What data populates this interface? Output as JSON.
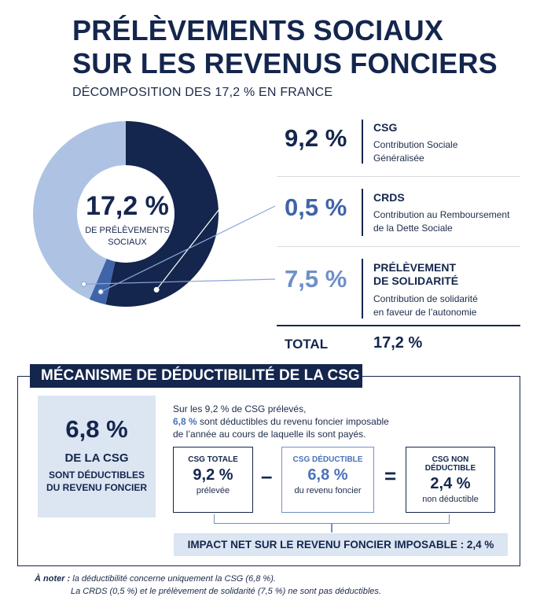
{
  "header": {
    "title_line1": "PRÉLÈVEMENTS SOCIAUX",
    "title_line2": "SUR LES REVENUS FONCIERS",
    "subtitle": "DÉCOMPOSITION DES 17,2 % EN FRANCE"
  },
  "chart_data": {
    "type": "pie",
    "title": "PRÉLÈVEMENTS SOCIAUX SUR LES REVENUS FONCIERS",
    "center_value": "17,2 %",
    "center_label_line1": "DE PRÉLÈVEMENTS",
    "center_label_line2": "SOCIAUX",
    "slices": [
      {
        "key": "csg",
        "value": 9.2,
        "label": "9,2 %",
        "name": "CSG",
        "desc_line1": "Contribution Sociale",
        "desc_line2": "Généralisée",
        "color": "#14264d"
      },
      {
        "key": "crds",
        "value": 0.5,
        "label": "0,5 %",
        "name": "CRDS",
        "desc_line1": "Contribution au Remboursement",
        "desc_line2": "de la Dette Sociale",
        "color": "#3f64a8"
      },
      {
        "key": "solidarite",
        "value": 7.5,
        "label": "7,5 %",
        "name_line1": "PRÉLÈVEMENT",
        "name_line2": "DE SOLIDARITÉ",
        "desc_line1": "Contribution de solidarité",
        "desc_line2": "en faveur de l’autonomie",
        "color": "#aec3e3"
      }
    ],
    "total_label": "TOTAL",
    "total_value": "17,2 %"
  },
  "mechanism": {
    "header": "MÉCANISME DE DÉDUCTIBILITÉ DE LA CSG",
    "big_value": "6,8 %",
    "big_line1": "DE LA CSG",
    "big_line2": "SONT DÉDUCTIBLES",
    "big_line3": "DU REVENU FONCIER",
    "explain_line1": "Sur les 9,2 % de CSG prélevés,",
    "explain_hl": "6,8 %",
    "explain_line2_rest": " sont déductibles du revenu foncier imposable",
    "explain_line3": "de l’année au cours de laquelle ils sont payés.",
    "box1": {
      "label": "CSG TOTALE",
      "value": "9,2 %",
      "sub": "prélevée"
    },
    "minus": "–",
    "box2": {
      "label": "CSG DÉDUCTIBLE",
      "value": "6,8 %",
      "sub": "du revenu foncier"
    },
    "equals": "=",
    "box3": {
      "label": "CSG NON DÉDUCTIBLE",
      "value": "2,4 %",
      "sub": "non déductible"
    },
    "impact": "IMPACT NET SUR LE REVENU FONCIER IMPOSABLE : 2,4 %"
  },
  "note": {
    "key": "À noter :",
    "line1": " la déductibilité concerne uniquement la CSG (6,8 %).",
    "line2": "La CRDS (0,5 %) et le prélèvement de solidarité (7,5 %) ne sont pas déductibles."
  }
}
